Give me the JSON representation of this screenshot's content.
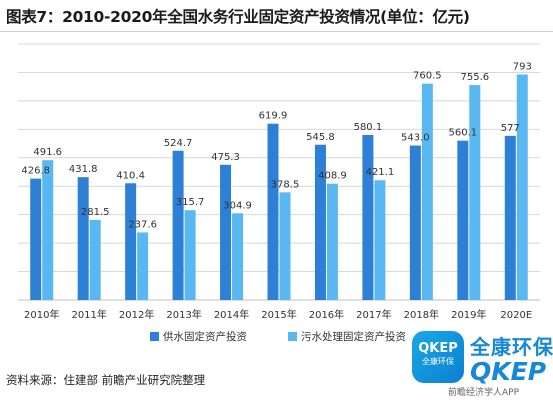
{
  "title": "图表7：2010-2020年全国水务行业固定资产投资情况(单位：亿元)",
  "source": "资料来源：住建部 前瞻产业研究院整理",
  "logo": {
    "badge_top": "QKEP",
    "badge_bottom": "全康环保",
    "name": "全康环保",
    "word": "QKEP",
    "foot": "前瞻经济学人APP"
  },
  "colors": {
    "water_supply": "#2e7fd6",
    "sewage": "#59b8f2",
    "grid": "#d8d8d8",
    "axis": "#bfbfbf"
  },
  "chart_data": {
    "type": "bar",
    "title": "图表7：2010-2020年全国水务行业固定资产投资情况(单位：亿元)",
    "categories": [
      "2010年",
      "2011年",
      "2012年",
      "2013年",
      "2014年",
      "2015年",
      "2016年",
      "2017年",
      "2018年",
      "2019年",
      "2020E"
    ],
    "series": [
      {
        "name": "供水固定资产投资",
        "values": [
          426.8,
          431.8,
          410.4,
          524.7,
          475.3,
          619.9,
          545.8,
          580.1,
          543.0,
          560.1,
          577
        ],
        "labels": [
          "426.8",
          "431.8",
          "410.4",
          "524.7",
          "475.3",
          "619.9",
          "545.8",
          "580.1",
          "543.0",
          "560.1",
          "577"
        ]
      },
      {
        "name": "污水处理固定资产投资",
        "values": [
          491.6,
          281.5,
          237.6,
          315.7,
          304.9,
          378.5,
          408.9,
          421.1,
          760.5,
          755.6,
          793
        ],
        "labels": [
          "491.6",
          "281.5",
          "237.6",
          "315.7",
          "304.9",
          "378.5",
          "408.9",
          "421.1",
          "760.5",
          "755.6",
          "793"
        ]
      }
    ],
    "ylim": [
      0,
      900
    ],
    "grid": true,
    "legend_position": "bottom-center",
    "xlabel": "",
    "ylabel": ""
  }
}
